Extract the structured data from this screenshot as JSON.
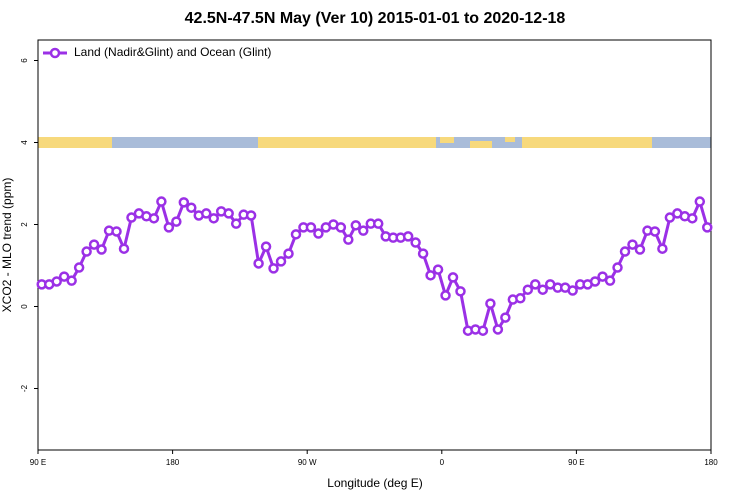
{
  "chart_data": {
    "type": "line",
    "title": "42.5N-47.5N May (Ver 10)   2015-01-01 to 2020-12-18",
    "x_label": "Longitude (deg E)",
    "y_label": "XCO2 - MLO trend (ppm)",
    "xlim": [
      90,
      540
    ],
    "ylim": [
      -3.5,
      6.5
    ],
    "xticks": [
      {
        "value": 90,
        "label": "90 E"
      },
      180,
      {
        "value": 270,
        "label": "90 W"
      },
      {
        "value": 360,
        "label": "0"
      },
      {
        "value": 450,
        "label": "90 E"
      },
      {
        "value": 540,
        "label": "180"
      }
    ],
    "yticks": [
      -2,
      0,
      2,
      4,
      6
    ],
    "legend": "top-left",
    "x": [
      92.5,
      97.5,
      102.5,
      107.5,
      112.5,
      117.5,
      122.5,
      127.5,
      132.5,
      137.5,
      142.5,
      147.5,
      152.5,
      157.5,
      162.5,
      167.5,
      172.5,
      177.5,
      182.5,
      187.5,
      192.5,
      197.5,
      202.5,
      207.5,
      212.5,
      217.5,
      222.5,
      227.5,
      232.5,
      237.5,
      242.5,
      247.5,
      252.5,
      257.5,
      262.5,
      267.5,
      272.5,
      277.5,
      282.5,
      287.5,
      292.5,
      297.5,
      302.5,
      307.5,
      312.5,
      317.5,
      322.5,
      327.5,
      332.5,
      337.5,
      342.5,
      347.5,
      352.5,
      357.5,
      362.5,
      367.5,
      372.5,
      377.5,
      382.5,
      387.5,
      392.5,
      397.5,
      402.5,
      407.5,
      412.5,
      417.5,
      422.5,
      427.5,
      432.5,
      437.5,
      442.5,
      447.5,
      452.5,
      457.5,
      462.5,
      467.5,
      472.5,
      477.5,
      482.5,
      487.5,
      492.5,
      497.5,
      502.5,
      507.5,
      512.5,
      517.5,
      522.5,
      527.5,
      532.5,
      537.5
    ],
    "series": [
      {
        "name": "Land (Nadir&Glint) and Ocean (Glint)",
        "color": "#9b30e6",
        "values": [
          0.54,
          0.54,
          0.61,
          0.73,
          0.63,
          0.95,
          1.34,
          1.51,
          1.39,
          1.85,
          1.83,
          1.41,
          2.17,
          2.27,
          2.2,
          2.15,
          2.56,
          1.93,
          2.07,
          2.54,
          2.41,
          2.22,
          2.27,
          2.15,
          2.32,
          2.27,
          2.02,
          2.24,
          2.22,
          1.05,
          1.46,
          0.93,
          1.1,
          1.29,
          1.76,
          1.93,
          1.93,
          1.78,
          1.93,
          2.0,
          1.93,
          1.63,
          1.98,
          1.85,
          2.02,
          2.02,
          1.71,
          1.68,
          1.68,
          1.71,
          1.56,
          1.29,
          0.76,
          0.9,
          0.27,
          0.71,
          0.37,
          -0.59,
          -0.56,
          -0.59,
          0.07,
          -0.56,
          -0.27,
          0.17,
          0.2,
          0.41,
          0.54,
          0.41,
          0.54,
          0.46,
          0.46,
          0.39,
          0.54,
          0.54,
          0.61,
          0.73,
          0.63,
          0.95,
          1.34,
          1.51,
          1.39,
          1.85,
          1.83,
          1.41,
          2.17,
          2.27,
          2.2,
          2.15,
          2.56,
          1.93
        ]
      }
    ]
  }
}
